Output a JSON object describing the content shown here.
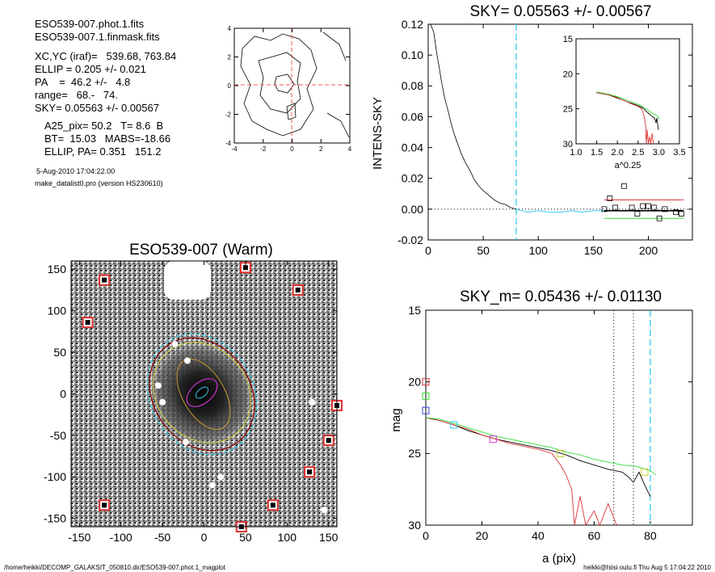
{
  "header": {
    "lines": [
      "ESO539-007.phot.1.fits",
      "ESO539-007.1.finmask.fits",
      "XC,YC (iraf)=   539.68, 763.84",
      "ELLIP = 0.205 +/- 0.021",
      "PA    =  46.2 +/-   4.8",
      "range=   68.-   74.",
      "SKY= 0.05563 +/- 0.00567",
      "A25_pix= 50.2   T= 8.6  B",
      "BT=  15.03   MABS=-18.66",
      "ELLIP, PA= 0.351   151.2"
    ],
    "date": "5-Aug-2010 17:04:22.00",
    "program": "make_datalist0.pro (version HS230610)"
  },
  "footer": {
    "path": "/home/heikki/DECOMP_GALAKSIT_050810.dir/ESO539-007.phot.1_magplot",
    "user": "heikki@hiisi.oulu.fi  Thu Aug  5 17:04:22 2010"
  },
  "colors": {
    "axis": "#000000",
    "cyan": "#33ccee",
    "red": "#dd3333",
    "green": "#33dd33",
    "blue": "#3344cc",
    "magenta": "#cc33cc",
    "yellow": "#cccc33",
    "darkred": "#880000",
    "pink_dash": "#ee5555"
  },
  "chart_data": [
    {
      "type": "contour",
      "name": "center-contour",
      "xlim": [
        -4,
        4
      ],
      "ylim": [
        -4,
        4
      ],
      "xticks": [
        "-4",
        "-2",
        "0",
        "2",
        "4"
      ],
      "yticks": [
        "-4",
        "-2",
        "0",
        "2",
        "4"
      ]
    },
    {
      "type": "line",
      "title": "SKY= 0.05563 +/- 0.00567",
      "ylabel": "INTENS-SKY",
      "xlim": [
        0,
        240
      ],
      "ylim": [
        -0.02,
        0.12
      ],
      "xticks": [
        "0",
        "50",
        "100",
        "150",
        "200"
      ],
      "yticks": [
        "-0.02",
        "0.00",
        "0.02",
        "0.04",
        "0.06",
        "0.08",
        "0.10",
        "0.12"
      ],
      "sky_cut_x": 80,
      "profile": [
        [
          2,
          0.125
        ],
        [
          5,
          0.115
        ],
        [
          8,
          0.1
        ],
        [
          10,
          0.092
        ],
        [
          12,
          0.083
        ],
        [
          15,
          0.072
        ],
        [
          18,
          0.064
        ],
        [
          20,
          0.058
        ],
        [
          23,
          0.05
        ],
        [
          26,
          0.044
        ],
        [
          30,
          0.036
        ],
        [
          34,
          0.03
        ],
        [
          38,
          0.025
        ],
        [
          42,
          0.019
        ],
        [
          46,
          0.015
        ],
        [
          50,
          0.012
        ],
        [
          55,
          0.009
        ],
        [
          60,
          0.006
        ],
        [
          65,
          0.004
        ],
        [
          70,
          0.003
        ],
        [
          75,
          0.001
        ],
        [
          80,
          0.0
        ]
      ],
      "sky_profile": [
        [
          80,
          0.0
        ],
        [
          90,
          -0.002
        ],
        [
          100,
          -0.001
        ],
        [
          110,
          -0.002
        ],
        [
          120,
          -0.002
        ],
        [
          130,
          -0.001
        ],
        [
          140,
          -0.002
        ],
        [
          150,
          -0.001
        ],
        [
          160,
          -0.001
        ],
        [
          180,
          -0.001
        ],
        [
          200,
          -0.001
        ],
        [
          220,
          -0.001
        ],
        [
          232,
          -0.001
        ]
      ],
      "sky_points": [
        [
          160,
          0.0
        ],
        [
          165,
          0.007
        ],
        [
          170,
          0.001
        ],
        [
          178,
          0.015
        ],
        [
          185,
          0.001
        ],
        [
          190,
          -0.003
        ],
        [
          195,
          0.002
        ],
        [
          200,
          0.002
        ],
        [
          205,
          0.001
        ],
        [
          210,
          -0.006
        ],
        [
          215,
          0.0
        ],
        [
          225,
          -0.002
        ],
        [
          230,
          -0.003
        ]
      ],
      "red_line": 0.006,
      "green_line": -0.006,
      "black_line": -0.001,
      "inset": {
        "xlabel": "a^0.25",
        "xlim": [
          1.0,
          3.5
        ],
        "ylim": [
          30,
          15
        ],
        "xticks": [
          "1.0",
          "1.5",
          "2.0",
          "2.5",
          "3.0",
          "3.5"
        ],
        "yticks": [
          "15",
          "20",
          "25",
          "30"
        ]
      }
    },
    {
      "type": "image",
      "title": "ESO539-007 (Warm)",
      "xlim": [
        -160,
        160
      ],
      "ylim": [
        -160,
        160
      ],
      "xticks": [
        "-150",
        "-100",
        "-50",
        "0",
        "50",
        "100",
        "150"
      ],
      "yticks": [
        "-150",
        "-100",
        "-50",
        "0",
        "50",
        "100",
        "150"
      ]
    },
    {
      "type": "line",
      "title": "SKY_m=  0.05436 +/- 0.01130",
      "xlabel": "a (pix)",
      "ylabel": "mag",
      "xlim": [
        0,
        95
      ],
      "ylim": [
        30,
        15
      ],
      "xticks": [
        "0",
        "20",
        "40",
        "60",
        "80"
      ],
      "yticks": [
        "15",
        "20",
        "25",
        "30"
      ],
      "vlines_dotted": [
        67,
        74
      ],
      "vline_cyan": 80,
      "series": [
        {
          "color": "black",
          "values": [
            [
              0,
              22.5
            ],
            [
              5,
              22.7
            ],
            [
              10,
              23.0
            ],
            [
              15,
              23.4
            ],
            [
              20,
              23.7
            ],
            [
              25,
              24.0
            ],
            [
              30,
              24.2
            ],
            [
              35,
              24.4
            ],
            [
              40,
              24.6
            ],
            [
              45,
              24.8
            ],
            [
              50,
              25.1
            ],
            [
              55,
              25.5
            ],
            [
              60,
              25.8
            ],
            [
              65,
              26.1
            ],
            [
              70,
              26.3
            ],
            [
              72,
              26.6
            ],
            [
              74,
              27.0
            ],
            [
              76,
              26.3
            ],
            [
              78,
              27.2
            ],
            [
              80,
              28.0
            ]
          ]
        },
        {
          "color": "red",
          "values": [
            [
              0,
              22.5
            ],
            [
              5,
              22.7
            ],
            [
              10,
              23.0
            ],
            [
              15,
              23.3
            ],
            [
              20,
              23.7
            ],
            [
              25,
              24.0
            ],
            [
              30,
              24.3
            ],
            [
              35,
              24.5
            ],
            [
              40,
              24.7
            ],
            [
              45,
              25.0
            ],
            [
              48,
              25.8
            ],
            [
              50,
              26.5
            ],
            [
              52,
              27.5
            ],
            [
              53,
              30.0
            ],
            [
              55,
              28.0
            ],
            [
              57,
              30.0
            ],
            [
              60,
              29.0
            ],
            [
              62,
              30.0
            ],
            [
              65,
              28.5
            ],
            [
              68,
              30.0
            ]
          ]
        },
        {
          "color": "green",
          "values": [
            [
              0,
              22.5
            ],
            [
              5,
              22.6
            ],
            [
              10,
              22.9
            ],
            [
              15,
              23.2
            ],
            [
              20,
              23.5
            ],
            [
              25,
              23.8
            ],
            [
              30,
              24.0
            ],
            [
              35,
              24.2
            ],
            [
              40,
              24.4
            ],
            [
              45,
              24.6
            ],
            [
              50,
              24.9
            ],
            [
              55,
              25.1
            ],
            [
              60,
              25.4
            ],
            [
              65,
              25.6
            ],
            [
              70,
              25.8
            ],
            [
              75,
              25.9
            ],
            [
              80,
              26.2
            ],
            [
              82,
              26.5
            ]
          ]
        }
      ],
      "markers": [
        {
          "color": "red",
          "x": 0,
          "y": 20.0
        },
        {
          "color": "green",
          "x": 0,
          "y": 21.0
        },
        {
          "color": "blue",
          "x": 0,
          "y": 22.0
        },
        {
          "color": "cyan",
          "x": 10,
          "y": 23.0
        },
        {
          "color": "magenta",
          "x": 24,
          "y": 24.0
        },
        {
          "color": "yellow",
          "x": 48,
          "y": 25.0
        },
        {
          "color": "yellow",
          "x": 78,
          "y": 26.3
        }
      ]
    }
  ]
}
